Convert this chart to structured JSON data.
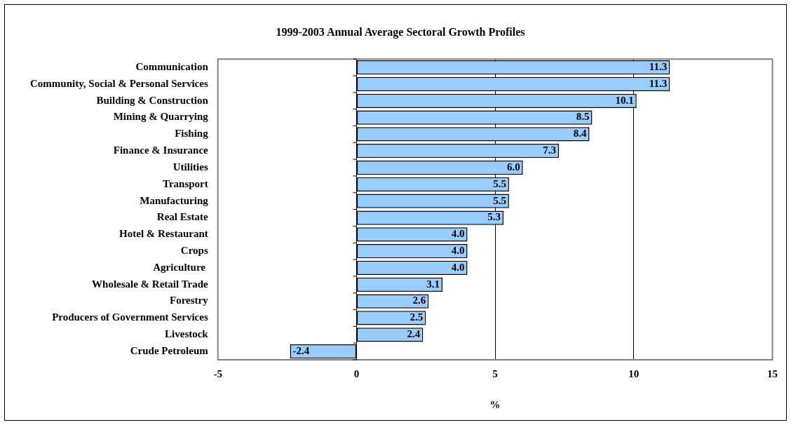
{
  "chart_data": {
    "type": "bar",
    "orientation": "horizontal",
    "title": "1999-2003 Annual Average Sectoral Growth Profiles",
    "xlabel": "%",
    "categories": [
      "Communication",
      "Community, Social & Personal Services",
      "Building & Construction",
      "Mining & Quarrying",
      "Fishing",
      "Finance & Insurance",
      "Utilities",
      "Transport",
      "Manufacturing",
      "Real Estate",
      "Hotel & Restaurant",
      "Crops",
      "Agriculture ",
      "Wholesale & Retail Trade",
      "Forestry",
      "Producers of Government Services",
      "Livestock",
      "Crude Petroleum"
    ],
    "values": [
      11.3,
      11.3,
      10.1,
      8.5,
      8.4,
      7.3,
      6.0,
      5.5,
      5.5,
      5.3,
      4.0,
      4.0,
      4.0,
      3.1,
      2.6,
      2.5,
      2.4,
      -2.4
    ],
    "value_labels": [
      "11.3",
      "11.3",
      "10.1",
      "8.5",
      "8.4",
      "7.3",
      "6.0",
      "5.5",
      "5.5",
      "5.3",
      "4.0",
      "4.0",
      "4.0",
      "3.1",
      "2.6",
      "2.5",
      "2.4",
      "-2.4"
    ],
    "color": "#99ccff",
    "xlim": [
      -5,
      15
    ],
    "xticks": [
      -5,
      0,
      5,
      10,
      15
    ],
    "grid": "x",
    "legend": false
  }
}
